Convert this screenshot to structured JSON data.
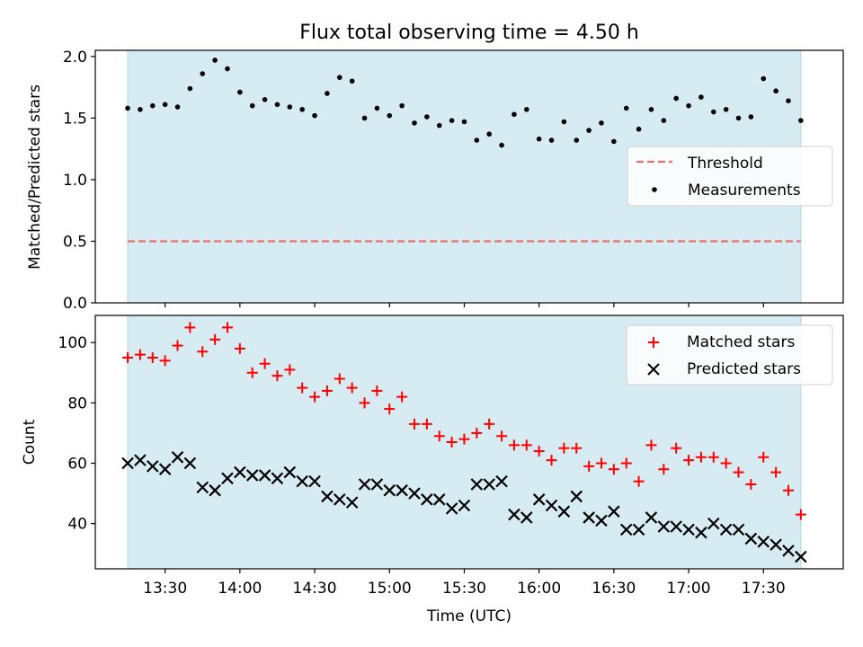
{
  "title": "Flux total observing time = 4.50 h",
  "colors": {
    "span_fill": "#add8e6",
    "threshold": "#e8706f",
    "measurement": "#000000",
    "matched": "#ff0000",
    "predicted": "#000000"
  },
  "chart_data": [
    {
      "type": "scatter",
      "ylabel": "Matched/Predicted stars",
      "xlabel": "",
      "xlim": [
        "13:02",
        "18:02"
      ],
      "ylim": [
        0,
        2.05
      ],
      "yticks": [
        0.0,
        0.5,
        1.0,
        1.5,
        2.0
      ],
      "ytick_labels": [
        "0.0",
        "0.5",
        "1.0",
        "1.5",
        "2.0"
      ],
      "observing_span": [
        "13:15",
        "17:45"
      ],
      "threshold": 0.5,
      "legend": {
        "position": "center-right",
        "entries": [
          "Threshold",
          "Measurements"
        ]
      },
      "series": [
        {
          "name": "Measurements",
          "x": [
            "13:15",
            "13:20",
            "13:25",
            "13:30",
            "13:35",
            "13:40",
            "13:45",
            "13:50",
            "13:55",
            "14:00",
            "14:05",
            "14:10",
            "14:15",
            "14:20",
            "14:25",
            "14:30",
            "14:35",
            "14:40",
            "14:45",
            "14:50",
            "14:55",
            "15:00",
            "15:05",
            "15:10",
            "15:15",
            "15:20",
            "15:25",
            "15:30",
            "15:35",
            "15:40",
            "15:45",
            "15:50",
            "15:55",
            "16:00",
            "16:05",
            "16:10",
            "16:15",
            "16:20",
            "16:25",
            "16:30",
            "16:35",
            "16:40",
            "16:45",
            "16:50",
            "16:55",
            "17:00",
            "17:05",
            "17:10",
            "17:15",
            "17:20",
            "17:25",
            "17:30",
            "17:35",
            "17:40",
            "17:45"
          ],
          "y": [
            1.58,
            1.57,
            1.6,
            1.61,
            1.59,
            1.74,
            1.86,
            1.97,
            1.9,
            1.71,
            1.6,
            1.65,
            1.61,
            1.59,
            1.57,
            1.52,
            1.7,
            1.83,
            1.8,
            1.5,
            1.58,
            1.52,
            1.6,
            1.46,
            1.51,
            1.44,
            1.48,
            1.47,
            1.32,
            1.37,
            1.28,
            1.53,
            1.57,
            1.33,
            1.32,
            1.47,
            1.32,
            1.4,
            1.46,
            1.31,
            1.58,
            1.41,
            1.57,
            1.48,
            1.66,
            1.6,
            1.67,
            1.55,
            1.57,
            1.5,
            1.51,
            1.82,
            1.72,
            1.64,
            1.48
          ]
        }
      ]
    },
    {
      "type": "scatter",
      "ylabel": "Count",
      "xlabel": "Time (UTC)",
      "xlim": [
        "13:02",
        "18:02"
      ],
      "ylim": [
        25,
        109
      ],
      "yticks": [
        40,
        60,
        80,
        100
      ],
      "ytick_labels": [
        "40",
        "60",
        "80",
        "100"
      ],
      "xticks": [
        "13:30",
        "14:00",
        "14:30",
        "15:00",
        "15:30",
        "16:00",
        "16:30",
        "17:00",
        "17:30"
      ],
      "observing_span": [
        "13:15",
        "17:45"
      ],
      "legend": {
        "position": "top-right",
        "entries": [
          "Matched stars",
          "Predicted stars"
        ]
      },
      "series": [
        {
          "name": "Matched stars",
          "marker": "plus",
          "x": [
            "13:15",
            "13:20",
            "13:25",
            "13:30",
            "13:35",
            "13:40",
            "13:45",
            "13:50",
            "13:55",
            "14:00",
            "14:05",
            "14:10",
            "14:15",
            "14:20",
            "14:25",
            "14:30",
            "14:35",
            "14:40",
            "14:45",
            "14:50",
            "14:55",
            "15:00",
            "15:05",
            "15:10",
            "15:15",
            "15:20",
            "15:25",
            "15:30",
            "15:35",
            "15:40",
            "15:45",
            "15:50",
            "15:55",
            "16:00",
            "16:05",
            "16:10",
            "16:15",
            "16:20",
            "16:25",
            "16:30",
            "16:35",
            "16:40",
            "16:45",
            "16:50",
            "16:55",
            "17:00",
            "17:05",
            "17:10",
            "17:15",
            "17:20",
            "17:25",
            "17:30",
            "17:35",
            "17:40",
            "17:45"
          ],
          "y": [
            95,
            96,
            95,
            94,
            99,
            105,
            97,
            101,
            105,
            98,
            90,
            93,
            89,
            91,
            85,
            82,
            84,
            88,
            85,
            80,
            84,
            78,
            82,
            73,
            73,
            69,
            67,
            68,
            70,
            73,
            69,
            66,
            66,
            64,
            61,
            65,
            65,
            59,
            60,
            58,
            60,
            54,
            66,
            58,
            65,
            61,
            62,
            62,
            60,
            57,
            53,
            62,
            57,
            51,
            43
          ]
        },
        {
          "name": "Predicted stars",
          "marker": "x",
          "x": [
            "13:15",
            "13:20",
            "13:25",
            "13:30",
            "13:35",
            "13:40",
            "13:45",
            "13:50",
            "13:55",
            "14:00",
            "14:05",
            "14:10",
            "14:15",
            "14:20",
            "14:25",
            "14:30",
            "14:35",
            "14:40",
            "14:45",
            "14:50",
            "14:55",
            "15:00",
            "15:05",
            "15:10",
            "15:15",
            "15:20",
            "15:25",
            "15:30",
            "15:35",
            "15:40",
            "15:45",
            "15:50",
            "15:55",
            "16:00",
            "16:05",
            "16:10",
            "16:15",
            "16:20",
            "16:25",
            "16:30",
            "16:35",
            "16:40",
            "16:45",
            "16:50",
            "16:55",
            "17:00",
            "17:05",
            "17:10",
            "17:15",
            "17:20",
            "17:25",
            "17:30",
            "17:35",
            "17:40",
            "17:45"
          ],
          "y": [
            60,
            61,
            59,
            58,
            62,
            60,
            52,
            51,
            55,
            57,
            56,
            56,
            55,
            57,
            54,
            54,
            49,
            48,
            47,
            53,
            53,
            51,
            51,
            50,
            48,
            48,
            45,
            46,
            53,
            53,
            54,
            43,
            42,
            48,
            46,
            44,
            49,
            42,
            41,
            44,
            38,
            38,
            42,
            39,
            39,
            38,
            37,
            40,
            38,
            38,
            35,
            34,
            33,
            31,
            29
          ]
        }
      ]
    }
  ]
}
